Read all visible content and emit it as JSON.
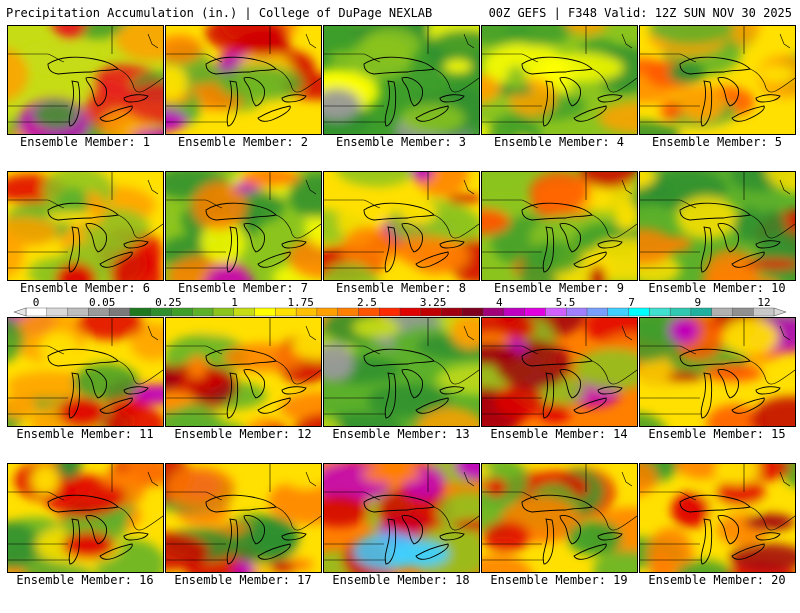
{
  "header": {
    "left": "Precipitation Accumulation (in.) | College of DuPage NEXLAB",
    "right": "00Z GEFS | F348 Valid: 12Z SUN NOV 30 2025"
  },
  "legend": {
    "tick_labels": [
      "0",
      "0.05",
      "0.25",
      "1",
      "1.75",
      "2.5",
      "3.25",
      "4",
      "5.5",
      "7",
      "9",
      "12"
    ],
    "colors": [
      "#ffffff",
      "#d9d9d9",
      "#bdbdbd",
      "#9a9a9a",
      "#7a7a7a",
      "#1f7a1f",
      "#2f8f2f",
      "#3e9e2a",
      "#5cb02a",
      "#8cc41e",
      "#c6dc14",
      "#ffff00",
      "#ffe000",
      "#ffc000",
      "#ffa000",
      "#ff7f00",
      "#ff5500",
      "#ff2a00",
      "#e00000",
      "#c00000",
      "#a00010",
      "#800020",
      "#a0007a",
      "#c000c0",
      "#e000e0",
      "#d060ff",
      "#a080ff",
      "#7aa0ff",
      "#40d0ff",
      "#00ffff",
      "#40e0d0",
      "#30c8b0",
      "#20b0a0",
      "#b0b0b0",
      "#909090",
      "#c8c8c8"
    ]
  },
  "members": [
    {
      "label": "Ensemble Member: 1",
      "palette": [
        "#3f9a2a",
        "#c6dc14",
        "#ffa000",
        "#e81a1a",
        "#c000c0"
      ]
    },
    {
      "label": "Ensemble Member: 2",
      "palette": [
        "#5cb02a",
        "#ffe000",
        "#ff7f00",
        "#d00000",
        "#c000c0"
      ]
    },
    {
      "label": "Ensemble Member: 3",
      "palette": [
        "#2f8f2f",
        "#3e9e2a",
        "#8cc41e",
        "#ffff00",
        "#9a9a9a"
      ]
    },
    {
      "label": "Ensemble Member: 4",
      "palette": [
        "#3e9e2a",
        "#8cc41e",
        "#ffff00",
        "#ffa000",
        "#2f8f2f"
      ]
    },
    {
      "label": "Ensemble Member: 5",
      "palette": [
        "#5cb02a",
        "#ffe000",
        "#ffa000",
        "#ff5500",
        "#2f8f2f"
      ]
    },
    {
      "label": "Ensemble Member: 6",
      "palette": [
        "#8cc41e",
        "#ffe000",
        "#ffa000",
        "#e00000",
        "#5cb02a"
      ]
    },
    {
      "label": "Ensemble Member: 7",
      "palette": [
        "#2f8f2f",
        "#8cc41e",
        "#ffff00",
        "#ff7f00",
        "#c000c0"
      ]
    },
    {
      "label": "Ensemble Member: 8",
      "palette": [
        "#8cc41e",
        "#ffe000",
        "#ff7f00",
        "#d00000",
        "#c000c0"
      ]
    },
    {
      "label": "Ensemble Member: 9",
      "palette": [
        "#3e9e2a",
        "#8cc41e",
        "#ffe000",
        "#ff5500",
        "#c00000"
      ]
    },
    {
      "label": "Ensemble Member: 10",
      "palette": [
        "#2f8f2f",
        "#5cb02a",
        "#ffe000",
        "#ff7f00",
        "#e00000"
      ]
    },
    {
      "label": "Ensemble Member: 11",
      "palette": [
        "#3e9e2a",
        "#ffe000",
        "#ffa000",
        "#e00000",
        "#c000c0"
      ]
    },
    {
      "label": "Ensemble Member: 12",
      "palette": [
        "#5cb02a",
        "#ffe000",
        "#ff7f00",
        "#d00000",
        "#a00010"
      ]
    },
    {
      "label": "Ensemble Member: 13",
      "palette": [
        "#2f8f2f",
        "#5cb02a",
        "#c6dc14",
        "#ffa000",
        "#9a9a9a"
      ]
    },
    {
      "label": "Ensemble Member: 14",
      "palette": [
        "#8cc41e",
        "#ff7f00",
        "#e00000",
        "#a00010",
        "#c000c0"
      ]
    },
    {
      "label": "Ensemble Member: 15",
      "palette": [
        "#3e9e2a",
        "#ffe000",
        "#ff5500",
        "#c00000",
        "#c000c0"
      ]
    },
    {
      "label": "Ensemble Member: 16",
      "palette": [
        "#5cb02a",
        "#ffe000",
        "#ff7f00",
        "#e00000",
        "#2f8f2f"
      ]
    },
    {
      "label": "Ensemble Member: 17",
      "palette": [
        "#2f8f2f",
        "#ffe000",
        "#ff7f00",
        "#d00000",
        "#c000c0"
      ]
    },
    {
      "label": "Ensemble Member: 18",
      "palette": [
        "#8cc41e",
        "#ff7f00",
        "#d00000",
        "#c000c0",
        "#40d0ff"
      ]
    },
    {
      "label": "Ensemble Member: 19",
      "palette": [
        "#5cb02a",
        "#ffe000",
        "#ff7f00",
        "#e00000",
        "#3e9e2a"
      ]
    },
    {
      "label": "Ensemble Member: 20",
      "palette": [
        "#3e9e2a",
        "#ffe000",
        "#ff7f00",
        "#e00000",
        "#a00010"
      ]
    }
  ]
}
